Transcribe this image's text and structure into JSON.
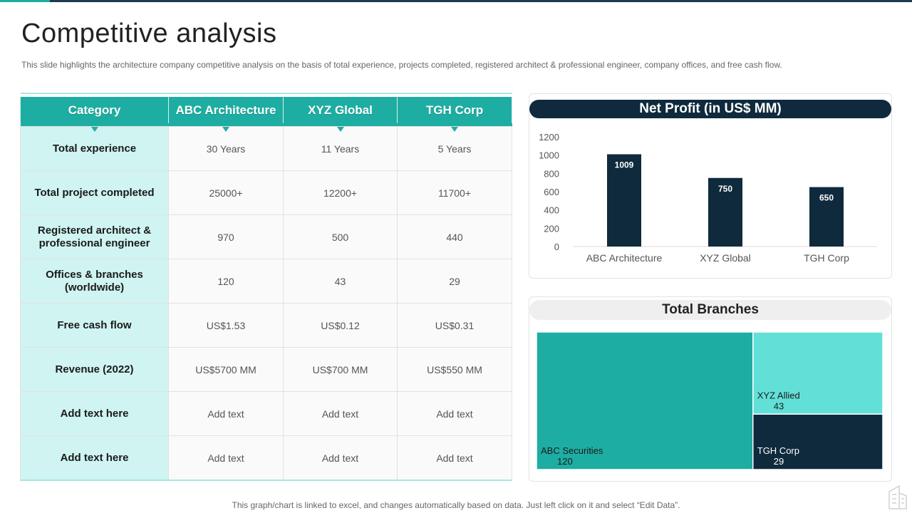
{
  "slide": {
    "title": "Competitive analysis",
    "subtitle": "This slide highlights the architecture company competitive analysis on the basis of total experience, projects completed, registered architect & professional engineer, company offices, and free cash flow.",
    "footer": "This graph/chart is linked to excel,  and changes automatically based on data. Just left click on it and select “Edit Data”."
  },
  "table": {
    "headers": [
      "Category",
      "ABC Architecture",
      "XYZ Global",
      "TGH Corp"
    ],
    "rows": [
      {
        "category": "Total experience",
        "values": [
          "30 Years",
          "11 Years",
          "5 Years"
        ]
      },
      {
        "category": "Total project completed",
        "values": [
          "25000+",
          "12200+",
          "11700+"
        ]
      },
      {
        "category": "Registered architect & professional engineer",
        "values": [
          "970",
          "500",
          "440"
        ]
      },
      {
        "category": "Offices & branches (worldwide)",
        "values": [
          "120",
          "43",
          "29"
        ]
      },
      {
        "category": "Free cash flow",
        "values": [
          "US$1.53",
          "US$0.12",
          "US$0.31"
        ]
      },
      {
        "category": "Revenue (2022)",
        "values": [
          "US$5700  MM",
          "US$700  MM",
          "US$550  MM"
        ]
      },
      {
        "category": "Add text here",
        "values": [
          "Add text",
          "Add text",
          "Add text"
        ]
      },
      {
        "category": "Add text here",
        "values": [
          "Add text",
          "Add text",
          "Add text"
        ]
      }
    ]
  },
  "colors": {
    "teal": "#1eada2",
    "light_teal": "#62e0d8",
    "navy": "#0f2a3d",
    "category_bg": "#cff4f1"
  },
  "chart_data": [
    {
      "type": "bar",
      "title": "Net Profit (in US$ MM)",
      "categories": [
        "ABC Architecture",
        "XYZ Global",
        "TGH Corp"
      ],
      "values": [
        1009,
        750,
        650
      ],
      "ylim": [
        0,
        1200
      ],
      "yticks": [
        0,
        200,
        400,
        600,
        800,
        1000,
        1200
      ],
      "grid": false,
      "xlabel": "",
      "ylabel": ""
    },
    {
      "type": "treemap",
      "title": "Total Branches",
      "items": [
        {
          "label": "ABC Securities",
          "value": 120
        },
        {
          "label": "XYZ Allied",
          "value": 43
        },
        {
          "label": "TGH Corp",
          "value": 29
        }
      ]
    }
  ]
}
